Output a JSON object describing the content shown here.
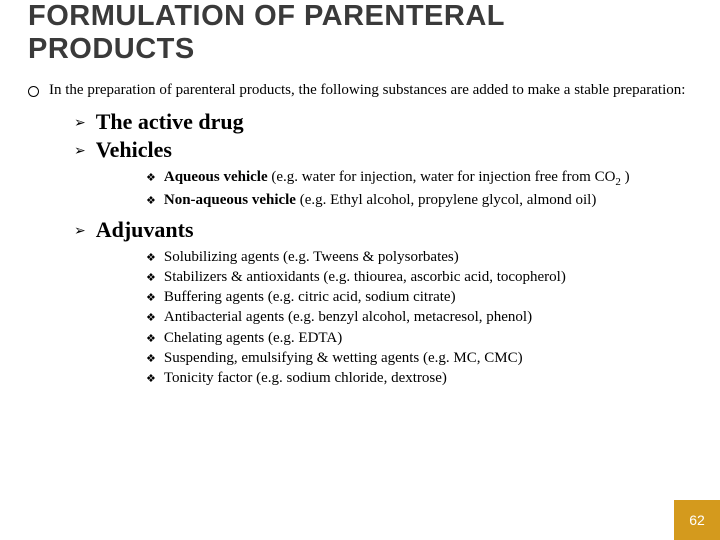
{
  "title_line1": "FORMULATION OF PARENTERAL",
  "title_line2": "PRODUCTS",
  "intro": "In the preparation of parenteral products, the following substances are added to make a stable preparation:",
  "l1": {
    "active": "The active drug",
    "vehicles": "Vehicles",
    "adjuvants": "Adjuvants"
  },
  "vehicles_sub": {
    "aq_bold": "Aqueous vehicle",
    "aq_rest_a": " (e.g. water for injection, water for injection free from CO",
    "aq_sub": "2",
    "aq_rest_b": " )",
    "nonaq_bold": "Non-aqueous vehicle",
    "nonaq_rest": " (e.g. Ethyl alcohol, propylene glycol, almond oil)"
  },
  "adjuvants_sub": {
    "a": "Solubilizing agents (e.g.  Tweens & polysorbates)",
    "b": "Stabilizers & antioxidants (e.g. thiourea, ascorbic acid, tocopherol)",
    "c": "Buffering agents (e.g. citric acid, sodium citrate)",
    "d": "Antibacterial agents (e.g. benzyl alcohol, metacresol, phenol)",
    "e": "Chelating agents (e.g. EDTA)",
    "f": "Suspending, emulsifying & wetting agents (e.g. MC, CMC)",
    "g": "Tonicity factor (e.g. sodium chloride, dextrose)"
  },
  "markers": {
    "l1": "➢",
    "l2": "❖"
  },
  "page_number": "62",
  "colors": {
    "badge_bg": "#d49a1d",
    "badge_fg": "#ffffff"
  }
}
